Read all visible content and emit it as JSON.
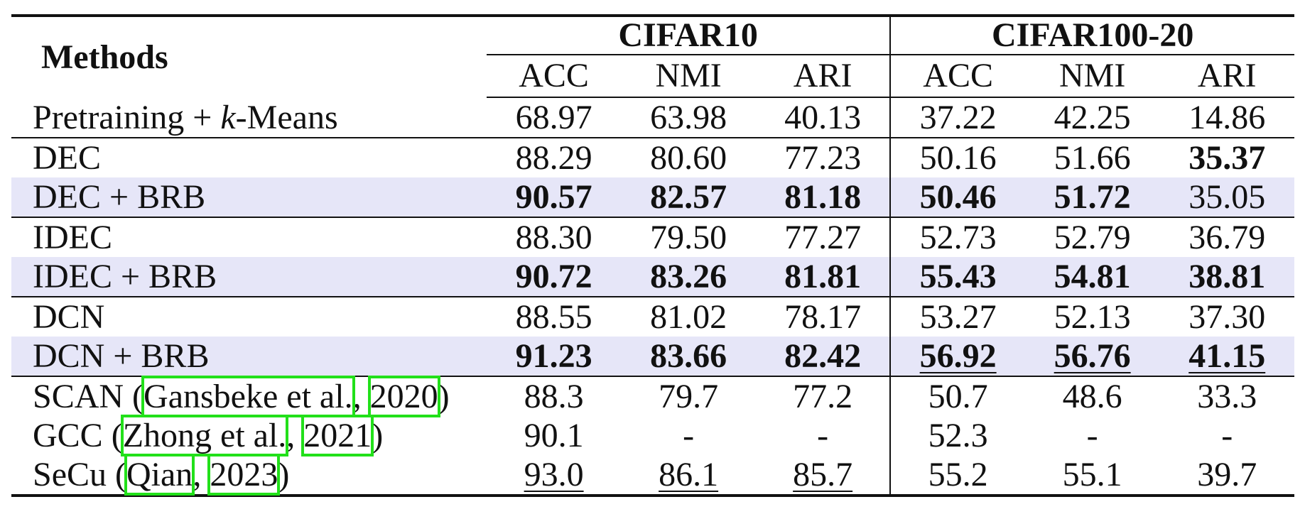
{
  "header": {
    "methods": "Methods",
    "groups": [
      "CIFAR10",
      "CIFAR100-20"
    ],
    "metrics": [
      "ACC",
      "NMI",
      "ARI",
      "ACC",
      "NMI",
      "ARI"
    ]
  },
  "rows": [
    {
      "method_parts": [
        "Pretraining + ",
        "k",
        "-Means"
      ],
      "values": [
        "68.97",
        "63.98",
        "40.13",
        "37.22",
        "42.25",
        "14.86"
      ],
      "bold": [],
      "underline": [],
      "highlight": false,
      "rule_after": true
    },
    {
      "method": "DEC",
      "values": [
        "88.29",
        "80.60",
        "77.23",
        "50.16",
        "51.66",
        "35.37"
      ],
      "bold": [
        5
      ],
      "underline": [],
      "highlight": false,
      "rule_after": false
    },
    {
      "method": "DEC + BRB",
      "values": [
        "90.57",
        "82.57",
        "81.18",
        "50.46",
        "51.72",
        "35.05"
      ],
      "bold": [
        0,
        1,
        2,
        3,
        4
      ],
      "underline": [],
      "highlight": true,
      "rule_after": true
    },
    {
      "method": "IDEC",
      "values": [
        "88.30",
        "79.50",
        "77.27",
        "52.73",
        "52.79",
        "36.79"
      ],
      "bold": [],
      "underline": [],
      "highlight": false,
      "rule_after": false
    },
    {
      "method": "IDEC + BRB",
      "values": [
        "90.72",
        "83.26",
        "81.81",
        "55.43",
        "54.81",
        "38.81"
      ],
      "bold": [
        0,
        1,
        2,
        3,
        4,
        5
      ],
      "underline": [],
      "highlight": true,
      "rule_after": true
    },
    {
      "method": "DCN",
      "values": [
        "88.55",
        "81.02",
        "78.17",
        "53.27",
        "52.13",
        "37.30"
      ],
      "bold": [],
      "underline": [],
      "highlight": false,
      "rule_after": false
    },
    {
      "method": "DCN + BRB",
      "values": [
        "91.23",
        "83.66",
        "82.42",
        "56.92",
        "56.76",
        "41.15"
      ],
      "bold": [
        0,
        1,
        2,
        3,
        4,
        5
      ],
      "underline": [
        3,
        4,
        5
      ],
      "highlight": true,
      "rule_after": true
    },
    {
      "method_prefix": "SCAN (",
      "cite_author": "Gansbeke et al.",
      "cite_sep": ", ",
      "cite_year": "2020",
      "method_suffix": ")",
      "values": [
        "88.3",
        "79.7",
        "77.2",
        "50.7",
        "48.6",
        "33.3"
      ],
      "bold": [],
      "underline": [],
      "highlight": false,
      "rule_after": false
    },
    {
      "method_prefix": "GCC (",
      "cite_author": "Zhong et al.",
      "cite_sep": ", ",
      "cite_year": "2021",
      "method_suffix": ")",
      "values": [
        "90.1",
        "-",
        "-",
        "52.3",
        "-",
        "-"
      ],
      "bold": [],
      "underline": [],
      "highlight": false,
      "rule_after": false
    },
    {
      "method_prefix": "SeCu (",
      "cite_author": "Qian",
      "cite_sep": ", ",
      "cite_year": "2023",
      "method_suffix": ")",
      "values": [
        "93.0",
        "86.1",
        "85.7",
        "55.2",
        "55.1",
        "39.7"
      ],
      "bold": [],
      "underline": [
        0,
        1,
        2
      ],
      "highlight": false,
      "rule_after": false
    }
  ],
  "colors": {
    "highlight_row": "#e6e6f8",
    "citation_box": "#22e01a",
    "rule": "#111111"
  }
}
